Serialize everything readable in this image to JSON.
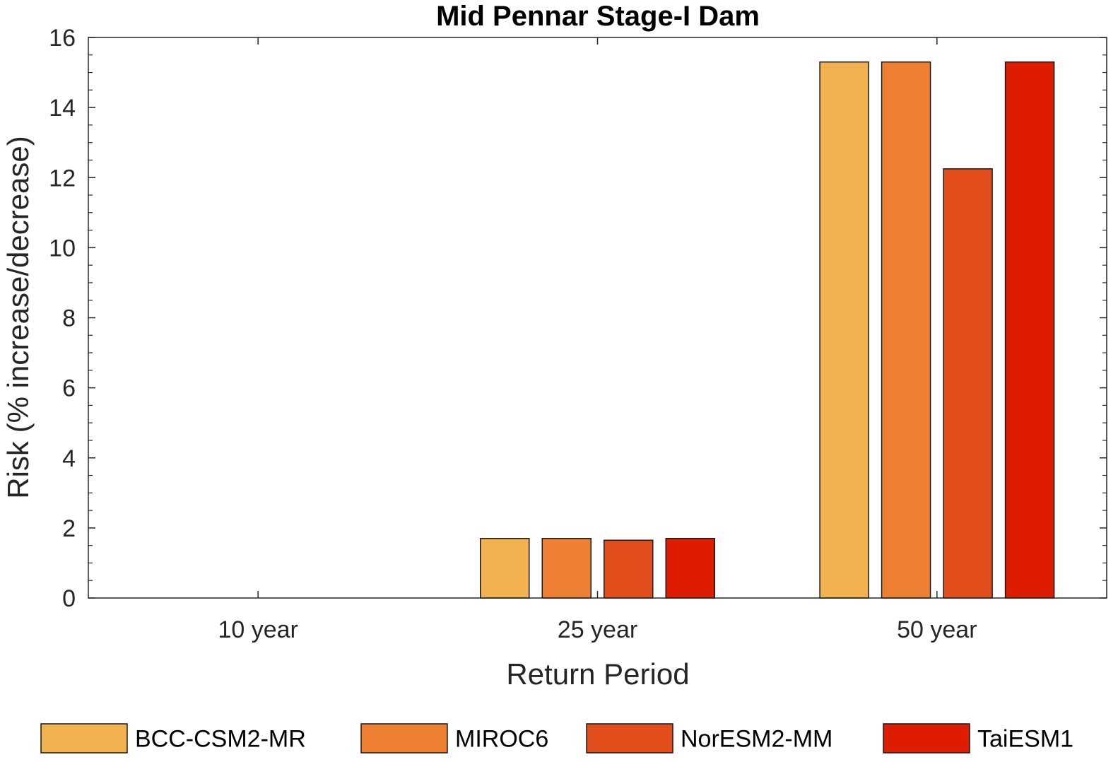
{
  "chart_data": {
    "type": "bar",
    "title": "Mid Pennar Stage-I Dam",
    "xlabel": "Return Period",
    "ylabel": "Risk (% increase/decrease)",
    "categories": [
      "10 year",
      "25 year",
      "50 year"
    ],
    "ylim": [
      0,
      16
    ],
    "yticks": [
      "0",
      "2",
      "4",
      "6",
      "8",
      "10",
      "12",
      "14",
      "16"
    ],
    "grid": false,
    "legend_position": "bottom",
    "series": [
      {
        "name": "BCC-CSM2-MR",
        "color": "#F2B24F",
        "values": [
          0,
          1.7,
          15.3
        ]
      },
      {
        "name": "MIROC6",
        "color": "#ED8033",
        "values": [
          0,
          1.7,
          15.3
        ]
      },
      {
        "name": "NorESM2-MM",
        "color": "#E24D1C",
        "values": [
          0,
          1.65,
          12.25
        ]
      },
      {
        "name": "TaiESM1",
        "color": "#DD1C00",
        "values": [
          0,
          1.7,
          15.3
        ]
      }
    ]
  }
}
